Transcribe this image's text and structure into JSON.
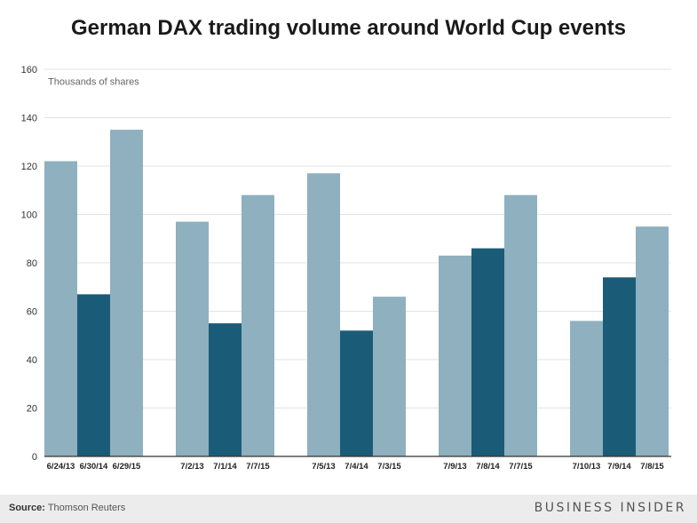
{
  "chart_data": {
    "type": "bar",
    "title": "German DAX trading volume around World Cup events",
    "ylabel": "Thousands of shares",
    "ylim": [
      0,
      160
    ],
    "yticks": [
      0,
      20,
      40,
      60,
      80,
      100,
      120,
      140,
      160
    ],
    "grid": true,
    "colors": {
      "light": "#8eb0bf",
      "dark": "#1a5c78",
      "grid": "#e3e3e3",
      "axis": "#333333"
    },
    "groups": [
      {
        "bars": [
          {
            "label": "6/24/13",
            "value": 122,
            "tone": "light"
          },
          {
            "label": "6/30/14",
            "value": 67,
            "tone": "dark"
          },
          {
            "label": "6/29/15",
            "value": 135,
            "tone": "light"
          }
        ]
      },
      {
        "bars": [
          {
            "label": "7/2/13",
            "value": 97,
            "tone": "light"
          },
          {
            "label": "7/1/14",
            "value": 55,
            "tone": "dark"
          },
          {
            "label": "7/7/15",
            "value": 108,
            "tone": "light"
          }
        ]
      },
      {
        "bars": [
          {
            "label": "7/5/13",
            "value": 117,
            "tone": "light"
          },
          {
            "label": "7/4/14",
            "value": 52,
            "tone": "dark"
          },
          {
            "label": "7/3/15",
            "value": 66,
            "tone": "light"
          }
        ]
      },
      {
        "bars": [
          {
            "label": "7/9/13",
            "value": 83,
            "tone": "light"
          },
          {
            "label": "7/8/14",
            "value": 86,
            "tone": "dark"
          },
          {
            "label": "7/7/15",
            "value": 108,
            "tone": "light"
          }
        ]
      },
      {
        "bars": [
          {
            "label": "7/10/13",
            "value": 56,
            "tone": "light"
          },
          {
            "label": "7/9/14",
            "value": 74,
            "tone": "dark"
          },
          {
            "label": "7/8/15",
            "value": 95,
            "tone": "light"
          }
        ]
      }
    ]
  },
  "footer": {
    "source_label": "Source:",
    "source_text": "Thomson Reuters",
    "brand": "BUSINESS INSIDER"
  }
}
